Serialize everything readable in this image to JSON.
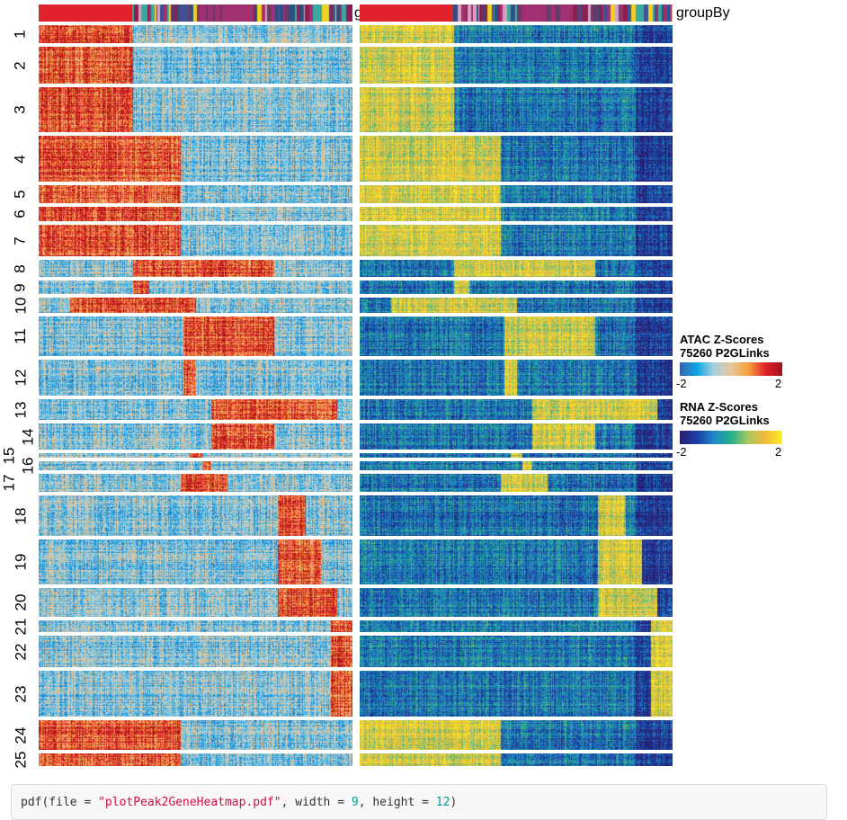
{
  "chart_data": {
    "type": "heatmap",
    "panels": [
      {
        "name": "ATAC",
        "legend_title": [
          "ATAC Z-Scores",
          "75260 P2GLinks"
        ],
        "range": [
          -2,
          2
        ],
        "colors": [
          "#3a62ac",
          "#0aa5e8",
          "#a8d0e0",
          "#e8c79c",
          "#f5a23a",
          "#e0242b",
          "#a0101a"
        ]
      },
      {
        "name": "RNA",
        "legend_title": [
          "RNA Z-Scores",
          "75260 P2GLinks"
        ],
        "range": [
          -2,
          2
        ],
        "colors": [
          "#2a1e6e",
          "#1a3fa8",
          "#1e88c8",
          "#22b08a",
          "#a8c860",
          "#f5b83c",
          "#f8f020"
        ]
      }
    ],
    "row_clusters": [
      "1",
      "2",
      "3",
      "4",
      "5",
      "6",
      "7",
      "8",
      "9",
      "10",
      "11",
      "12",
      "13",
      "14",
      "15",
      "16",
      "17",
      "18",
      "19",
      "20",
      "21",
      "22",
      "23",
      "24",
      "25"
    ],
    "column_annotation": "groupBy",
    "annotation_colors": [
      "#e0222a",
      "#d8a0c0",
      "#3aa8a0",
      "#6a3a6a",
      "#a03070",
      "#f0d020",
      "#2a5080",
      "#8a2050",
      "#405090"
    ],
    "tick_labels": [
      "-2",
      "2"
    ]
  },
  "code": {
    "fn": "pdf(file = ",
    "file": "\"plotPeak2GeneHeatmap.pdf\"",
    "w_label": ", width = ",
    "w": "9",
    "h_label": ", height = ",
    "h": "12",
    "close": ")"
  }
}
